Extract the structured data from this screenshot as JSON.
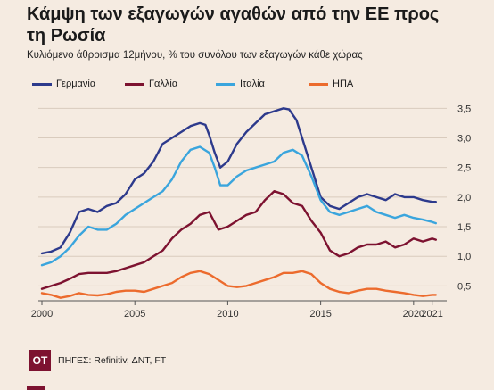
{
  "header": {
    "title": "Κάμψη των εξαγωγών αγαθών από την ΕΕ προς τη Ρωσία",
    "subtitle": "Κυλιόμενο άθροισμα 12μήνου, % του συνόλου των εξαγωγών κάθε χώρας"
  },
  "footer": {
    "logo": "ΟΤ",
    "source": "ΠΗΓΕΣ: Refinitiv, ΔΝΤ, FT"
  },
  "chart_data": {
    "type": "line",
    "x_tick_labels": [
      "2000",
      "2005",
      "2010",
      "2015",
      "2020",
      "2021"
    ],
    "x_tick_values": [
      2000,
      2005,
      2010,
      2015,
      2020,
      2021
    ],
    "y_tick_labels": [
      "0,5",
      "1,0",
      "1,5",
      "2,0",
      "2,5",
      "3,0",
      "3,5"
    ],
    "y_tick_values": [
      0.5,
      1.0,
      1.5,
      2.0,
      2.5,
      3.0,
      3.5
    ],
    "xlim": [
      2000,
      2021.4
    ],
    "ylim": [
      0.25,
      3.55
    ],
    "y_axis_side": "right",
    "grid": "horizontal",
    "legend": "top-left",
    "series": [
      {
        "name": "Γερμανία",
        "color": "#2d3a8c",
        "x": [
          2000,
          2000.5,
          2001,
          2001.5,
          2002,
          2002.5,
          2003,
          2003.5,
          2004,
          2004.5,
          2005,
          2005.5,
          2006,
          2006.5,
          2007,
          2007.5,
          2008,
          2008.5,
          2008.8,
          2009,
          2009.3,
          2009.6,
          2010,
          2010.5,
          2011,
          2011.5,
          2012,
          2012.5,
          2013,
          2013.3,
          2013.7,
          2014,
          2014.5,
          2015,
          2015.5,
          2016,
          2016.5,
          2017,
          2017.5,
          2018,
          2018.5,
          2019,
          2019.5,
          2020,
          2020.5,
          2021,
          2021.2
        ],
        "values": [
          1.05,
          1.08,
          1.15,
          1.4,
          1.75,
          1.8,
          1.75,
          1.85,
          1.9,
          2.05,
          2.3,
          2.4,
          2.6,
          2.9,
          3.0,
          3.1,
          3.2,
          3.25,
          3.22,
          3.05,
          2.75,
          2.5,
          2.6,
          2.9,
          3.1,
          3.25,
          3.4,
          3.45,
          3.5,
          3.48,
          3.3,
          3.0,
          2.5,
          2.0,
          1.85,
          1.8,
          1.9,
          2.0,
          2.05,
          2.0,
          1.95,
          2.05,
          2.0,
          2.0,
          1.95,
          1.92,
          1.92
        ]
      },
      {
        "name": "Γαλλία",
        "color": "#7d1230",
        "x": [
          2000,
          2000.5,
          2001,
          2001.5,
          2002,
          2002.5,
          2003,
          2003.5,
          2004,
          2004.5,
          2005,
          2005.5,
          2006,
          2006.5,
          2007,
          2007.5,
          2008,
          2008.5,
          2009,
          2009.5,
          2010,
          2010.5,
          2011,
          2011.5,
          2012,
          2012.5,
          2013,
          2013.5,
          2014,
          2014.5,
          2015,
          2015.5,
          2016,
          2016.5,
          2017,
          2017.5,
          2018,
          2018.5,
          2019,
          2019.5,
          2020,
          2020.5,
          2021,
          2021.2
        ],
        "values": [
          0.45,
          0.5,
          0.55,
          0.62,
          0.7,
          0.72,
          0.72,
          0.72,
          0.75,
          0.8,
          0.85,
          0.9,
          1.0,
          1.1,
          1.3,
          1.45,
          1.55,
          1.7,
          1.75,
          1.45,
          1.5,
          1.6,
          1.7,
          1.75,
          1.95,
          2.1,
          2.05,
          1.9,
          1.85,
          1.6,
          1.4,
          1.1,
          1.0,
          1.05,
          1.15,
          1.2,
          1.2,
          1.25,
          1.15,
          1.2,
          1.3,
          1.25,
          1.3,
          1.28
        ]
      },
      {
        "name": "Ιταλία",
        "color": "#3aa5dd",
        "x": [
          2000,
          2000.5,
          2001,
          2001.5,
          2002,
          2002.5,
          2003,
          2003.5,
          2004,
          2004.5,
          2005,
          2005.5,
          2006,
          2006.5,
          2007,
          2007.5,
          2008,
          2008.5,
          2009,
          2009.3,
          2009.6,
          2010,
          2010.5,
          2011,
          2011.5,
          2012,
          2012.5,
          2013,
          2013.5,
          2014,
          2014.5,
          2015,
          2015.5,
          2016,
          2016.5,
          2017,
          2017.5,
          2018,
          2018.5,
          2019,
          2019.5,
          2020,
          2020.5,
          2021,
          2021.2
        ],
        "values": [
          0.85,
          0.9,
          1.0,
          1.15,
          1.35,
          1.5,
          1.45,
          1.45,
          1.55,
          1.7,
          1.8,
          1.9,
          2.0,
          2.1,
          2.3,
          2.6,
          2.8,
          2.85,
          2.75,
          2.5,
          2.2,
          2.2,
          2.35,
          2.45,
          2.5,
          2.55,
          2.6,
          2.75,
          2.8,
          2.7,
          2.35,
          1.95,
          1.75,
          1.7,
          1.75,
          1.8,
          1.85,
          1.75,
          1.7,
          1.65,
          1.7,
          1.65,
          1.62,
          1.58,
          1.56
        ]
      },
      {
        "name": "ΗΠΑ",
        "color": "#ec6b2d",
        "x": [
          2000,
          2000.5,
          2001,
          2001.5,
          2002,
          2002.5,
          2003,
          2003.5,
          2004,
          2004.5,
          2005,
          2005.5,
          2006,
          2006.5,
          2007,
          2007.5,
          2008,
          2008.5,
          2009,
          2009.5,
          2010,
          2010.5,
          2011,
          2011.5,
          2012,
          2012.5,
          2013,
          2013.5,
          2014,
          2014.5,
          2015,
          2015.5,
          2016,
          2016.5,
          2017,
          2017.5,
          2018,
          2018.5,
          2019,
          2019.5,
          2020,
          2020.5,
          2021,
          2021.2
        ],
        "values": [
          0.38,
          0.35,
          0.3,
          0.33,
          0.38,
          0.35,
          0.34,
          0.36,
          0.4,
          0.42,
          0.42,
          0.4,
          0.45,
          0.5,
          0.55,
          0.65,
          0.72,
          0.75,
          0.7,
          0.6,
          0.5,
          0.48,
          0.5,
          0.55,
          0.6,
          0.65,
          0.72,
          0.72,
          0.75,
          0.7,
          0.55,
          0.45,
          0.4,
          0.38,
          0.42,
          0.45,
          0.45,
          0.42,
          0.4,
          0.38,
          0.35,
          0.33,
          0.35,
          0.35
        ]
      }
    ]
  }
}
